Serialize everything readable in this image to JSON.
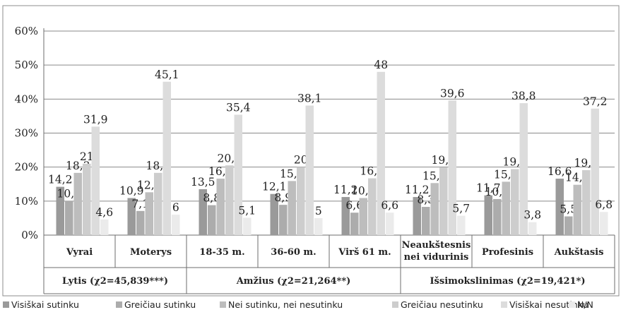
{
  "chart_data": {
    "type": "bar",
    "categories": [
      "Vyrai",
      "Moterys",
      "18-35 m.",
      "36-60 m.",
      "Virš 61 m.",
      "Neaukštesnis\nnei vidurinis",
      "Profesinis",
      "Aukštasis"
    ],
    "groups": [
      {
        "label": "Lytis (χ2=45,839***)",
        "categories": [
          0,
          1
        ]
      },
      {
        "label": "Amžius (χ2=21,264**)",
        "categories": [
          2,
          3,
          4
        ]
      },
      {
        "label": "Išsimokslinimas (χ2=19,421*)",
        "categories": [
          5,
          6,
          7
        ]
      }
    ],
    "series": [
      {
        "name": "Visiškai sutinku",
        "color": "#9a9a9a",
        "values": [
          14.2,
          10.9,
          13.5,
          12.1,
          11.2,
          11.2,
          11.7,
          16.6
        ],
        "labels": [
          "14,2",
          "10,9",
          "13,5",
          "12,1",
          "11,2",
          "11,2",
          "11,7",
          "16,6"
        ]
      },
      {
        "name": "Greičiau sutinku",
        "color": "#acacac",
        "values": [
          10.1,
          7.1,
          8.8,
          8.9,
          6.6,
          8.3,
          10.6,
          5.5
        ],
        "labels": [
          "10,1",
          "7,1",
          "8,8",
          "8,9",
          "6,6",
          "8,3",
          "10,6",
          "5,5"
        ]
      },
      {
        "name": "Nei sutinku, nei nesutinku",
        "color": "#bdbdbd",
        "values": [
          18.3,
          12.6,
          16.6,
          15.9,
          10.9,
          15.3,
          15.7,
          14.8
        ],
        "labels": [
          "18,3",
          "12,6",
          "16,6",
          "15,9",
          "10,9",
          "15,3",
          "15,7",
          "14,8"
        ]
      },
      {
        "name": "Greičiau nesutinku",
        "color": "#cdcdcd",
        "values": [
          21,
          18.3,
          20.5,
          20,
          16.7,
          19.9,
          19.4,
          19.1
        ],
        "labels": [
          "21",
          "18,3",
          "20,5",
          "20",
          "16,7",
          "19,9",
          "19,4",
          "19,1"
        ]
      },
      {
        "name": "Visiškai nesutinku",
        "color": "#dcdcdc",
        "values": [
          31.9,
          45.1,
          35.4,
          38.1,
          48,
          39.6,
          38.8,
          37.2
        ],
        "labels": [
          "31,9",
          "45,1",
          "35,4",
          "38,1",
          "48",
          "39,6",
          "38,8",
          "37,2"
        ]
      },
      {
        "name": "N/N",
        "color": "#ebebeb",
        "values": [
          4.6,
          6,
          5.1,
          5,
          6.6,
          5.7,
          3.8,
          6.8
        ],
        "labels": [
          "4,6",
          "6",
          "5,1",
          "5",
          "6,6",
          "5,7",
          "3,8",
          "6,8"
        ]
      }
    ],
    "yticks": [
      "0%",
      "10%",
      "20%",
      "30%",
      "40%",
      "50%",
      "60%"
    ],
    "ylim": [
      0,
      60
    ],
    "grid": true,
    "legend_position": "bottom"
  }
}
